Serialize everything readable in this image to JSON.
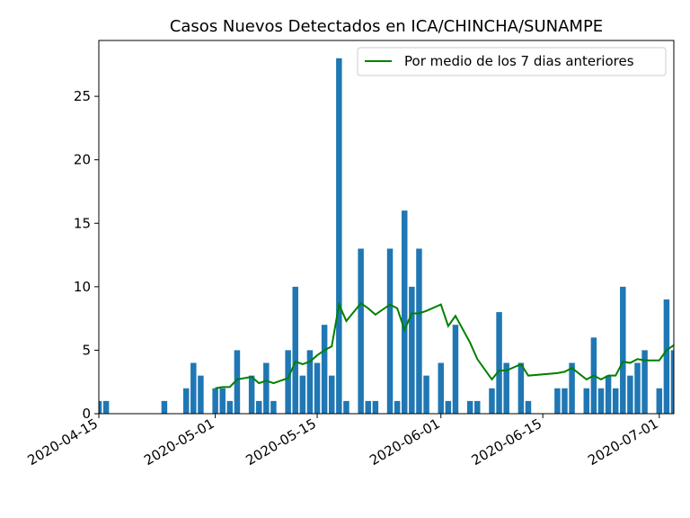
{
  "chart_data": {
    "type": "bar",
    "title": "Casos Nuevos Detectados en ICA/CHINCHA/SUNAMPE",
    "color": "#1f77b4",
    "x": [
      "2020-04-15",
      "2020-04-16",
      "2020-04-24",
      "2020-04-27",
      "2020-04-28",
      "2020-04-29",
      "2020-05-01",
      "2020-05-02",
      "2020-05-03",
      "2020-05-04",
      "2020-05-06",
      "2020-05-07",
      "2020-05-08",
      "2020-05-09",
      "2020-05-11",
      "2020-05-12",
      "2020-05-13",
      "2020-05-14",
      "2020-05-15",
      "2020-05-16",
      "2020-05-17",
      "2020-05-18",
      "2020-05-19",
      "2020-05-21",
      "2020-05-22",
      "2020-05-23",
      "2020-05-25",
      "2020-05-26",
      "2020-05-27",
      "2020-05-28",
      "2020-05-29",
      "2020-05-30",
      "2020-06-01",
      "2020-06-02",
      "2020-06-03",
      "2020-06-05",
      "2020-06-06",
      "2020-06-08",
      "2020-06-09",
      "2020-06-10",
      "2020-06-12",
      "2020-06-13",
      "2020-06-17",
      "2020-06-18",
      "2020-06-19",
      "2020-06-21",
      "2020-06-22",
      "2020-06-23",
      "2020-06-24",
      "2020-06-25",
      "2020-06-26",
      "2020-06-27",
      "2020-06-28",
      "2020-06-29",
      "2020-07-01",
      "2020-07-02",
      "2020-07-03"
    ],
    "values": [
      1,
      1,
      1,
      2,
      4,
      3,
      2,
      2,
      1,
      5,
      3,
      1,
      4,
      1,
      5,
      10,
      3,
      5,
      4,
      7,
      3,
      28,
      1,
      13,
      1,
      1,
      13,
      1,
      16,
      10,
      13,
      3,
      4,
      1,
      7,
      1,
      1,
      2,
      8,
      4,
      4,
      1,
      2,
      2,
      4,
      2,
      6,
      2,
      3,
      2,
      10,
      3,
      4,
      5,
      2,
      9,
      5
    ],
    "series": [
      {
        "name": "Por medio de los 7 dias anteriores",
        "type": "line",
        "color": "#008000",
        "x": [
          "2020-05-01",
          "2020-05-02",
          "2020-05-03",
          "2020-05-04",
          "2020-05-06",
          "2020-05-07",
          "2020-05-08",
          "2020-05-09",
          "2020-05-11",
          "2020-05-12",
          "2020-05-13",
          "2020-05-14",
          "2020-05-15",
          "2020-05-16",
          "2020-05-17",
          "2020-05-18",
          "2020-05-19",
          "2020-05-21",
          "2020-05-22",
          "2020-05-23",
          "2020-05-25",
          "2020-05-26",
          "2020-05-27",
          "2020-05-28",
          "2020-05-29",
          "2020-05-30",
          "2020-06-01",
          "2020-06-02",
          "2020-06-03",
          "2020-06-05",
          "2020-06-06",
          "2020-06-08",
          "2020-06-09",
          "2020-06-10",
          "2020-06-12",
          "2020-06-13",
          "2020-06-17",
          "2020-06-18",
          "2020-06-19",
          "2020-06-21",
          "2020-06-22",
          "2020-06-23",
          "2020-06-24",
          "2020-06-25",
          "2020-06-26",
          "2020-06-27",
          "2020-06-28",
          "2020-06-29",
          "2020-07-01",
          "2020-07-02",
          "2020-07-03"
        ],
        "values": [
          2.0,
          2.1,
          2.1,
          2.7,
          2.9,
          2.4,
          2.6,
          2.4,
          2.8,
          4.1,
          3.9,
          4.1,
          4.6,
          5.0,
          5.3,
          8.6,
          7.3,
          8.7,
          8.3,
          7.8,
          8.6,
          8.3,
          6.6,
          7.9,
          7.9,
          8.1,
          8.6,
          6.9,
          7.7,
          5.6,
          4.3,
          2.7,
          3.4,
          3.4,
          3.9,
          3.0,
          3.2,
          3.3,
          3.6,
          2.7,
          3.0,
          2.7,
          3.0,
          3.0,
          4.1,
          4.0,
          4.3,
          4.2,
          4.2,
          5.0,
          5.4
        ]
      }
    ],
    "xlim": [
      "2020-04-15",
      "2020-07-03"
    ],
    "xticks": [
      "2020-04-15",
      "2020-05-01",
      "2020-05-15",
      "2020-06-01",
      "2020-06-15",
      "2020-07-01"
    ],
    "ylim": [
      0,
      29.4
    ],
    "yticks": [
      0,
      5,
      10,
      15,
      20,
      25
    ],
    "legend": "upper right"
  }
}
